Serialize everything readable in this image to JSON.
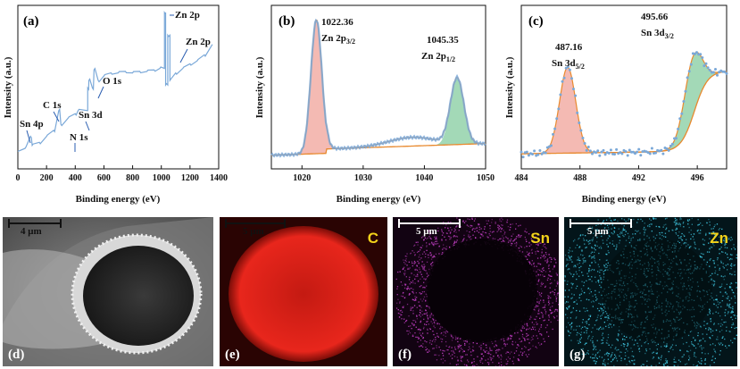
{
  "panels": {
    "a": {
      "label": "(a)",
      "xlabel": "Binding energy (eV)",
      "ylabel": "Intensity (a.u.)",
      "xticks": [
        "0",
        "200",
        "400",
        "600",
        "800",
        "1000",
        "1200",
        "1400"
      ],
      "annotations": [
        "Zn 2p",
        "Zn 2p",
        "O 1s",
        "C 1s",
        "Sn 3d",
        "N 1s",
        "Sn 4p"
      ]
    },
    "b": {
      "label": "(b)",
      "xlabel": "Binding energy (eV)",
      "ylabel": "Intensity (a.u.)",
      "xticks": [
        "1020",
        "1030",
        "1040",
        "1050"
      ],
      "peak1_value": "1022.36",
      "peak1_name": "Zn 2p",
      "peak1_sub": "3/2",
      "peak2_value": "1045.35",
      "peak2_name": "Zn  2p",
      "peak2_sub": "1/2"
    },
    "c": {
      "label": "(c)",
      "xlabel": "Binding energy (eV)",
      "ylabel": "Intensity (a.u.)",
      "xticks": [
        "484",
        "488",
        "492",
        "496"
      ],
      "peak1_value": "487.16",
      "peak1_name": "Sn 3d",
      "peak1_sub": "5/2",
      "peak2_value": "495.66",
      "peak2_name": "Sn 3d",
      "peak2_sub": "3/2"
    },
    "d": {
      "label": "(d)",
      "scale": "4 μm"
    },
    "e": {
      "label": "(e)",
      "scale": "5 μm",
      "element": "C"
    },
    "f": {
      "label": "(f)",
      "scale": "5 μm",
      "element": "Sn"
    },
    "g": {
      "label": "(g)",
      "scale": "5 μm",
      "element": "Zn"
    }
  },
  "colors": {
    "spectrum": "#7aa8d8",
    "envelope": "#e8892e",
    "peak_red": "#f1a9a0",
    "peak_green": "#8ccfa5",
    "map_c": "#e8261c",
    "map_sn": "#c23fc4",
    "map_zn": "#3fc6e0",
    "label_yellow": "#f3d21a"
  },
  "chart_data": [
    {
      "type": "line",
      "panel": "a",
      "title": "",
      "xlabel": "Binding energy (eV)",
      "ylabel": "Intensity (a.u.)",
      "xlim": [
        0,
        1400
      ],
      "series": [
        {
          "x": [
            0,
            50,
            88,
            100,
            150,
            200,
            250,
            285,
            300,
            350,
            400,
            420,
            487,
            495,
            520,
            531,
            560,
            600,
            650,
            700,
            750,
            800,
            850,
            900,
            950,
            990,
            1022,
            1030,
            1045,
            1060,
            1100,
            1150,
            1200,
            1250,
            1300,
            1350
          ],
          "y": [
            0.08,
            0.1,
            0.18,
            0.12,
            0.14,
            0.18,
            0.22,
            0.35,
            0.26,
            0.3,
            0.33,
            0.35,
            0.5,
            0.55,
            0.5,
            0.62,
            0.55,
            0.58,
            0.6,
            0.6,
            0.61,
            0.6,
            0.61,
            0.61,
            0.62,
            0.63,
            1.0,
            0.52,
            0.85,
            0.55,
            0.6,
            0.63,
            0.66,
            0.68,
            0.72,
            0.78
          ]
        }
      ]
    },
    {
      "type": "line",
      "panel": "b",
      "xlabel": "Binding energy (eV)",
      "ylabel": "Intensity (a.u.)",
      "xlim": [
        1015,
        1050
      ],
      "peaks": [
        {
          "center": 1022.36,
          "height": 1.0
        },
        {
          "center": 1045.35,
          "height": 0.55
        }
      ]
    },
    {
      "type": "line",
      "panel": "c",
      "xlabel": "Binding energy (eV)",
      "ylabel": "Intensity (a.u.)",
      "xlim": [
        484,
        498
      ],
      "peaks": [
        {
          "center": 487.16,
          "height": 0.62
        },
        {
          "center": 495.66,
          "height": 0.9
        }
      ]
    }
  ]
}
